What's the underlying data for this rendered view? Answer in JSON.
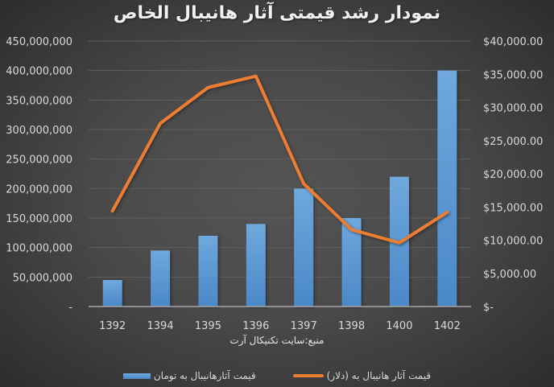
{
  "title": "نمودار رشد قیمتی آثار هانیبال الخاص",
  "xlabel": "منبع:سایت تکنیکال آرت",
  "colors": {
    "bar": "#5b9bd5",
    "bar_dark": "#4a88c8",
    "line": "#ed7d31",
    "grid": "#5f5f5f",
    "axis": "#a6a6a6",
    "text": "#d9d9d9"
  },
  "legend": {
    "line_label": "قیمت آثار هانیبال به (دلار)",
    "bar_label": "قیمت آثارهانیبال  به تومان"
  },
  "chart_data": {
    "type": "bar+line",
    "title": "نمودار رشد قیمتی آثار هانیبال الخاص",
    "xlabel": "منبع:سایت تکنیکال آرت",
    "ylabel": "",
    "categories": [
      "1392",
      "1394",
      "1395",
      "1396",
      "1397",
      "1398",
      "1400",
      "1402"
    ],
    "series": [
      {
        "name": "قیمت آثارهانیبال  به تومان",
        "type": "bar",
        "axis": "left",
        "values": [
          45000000,
          95000000,
          120000000,
          140000000,
          200000000,
          150000000,
          220000000,
          400000000
        ]
      },
      {
        "name": "قیمت آثار هانیبال به (دلار)",
        "type": "line",
        "axis": "right",
        "values": [
          14400,
          27600,
          33000,
          34700,
          18500,
          11600,
          9600,
          14200
        ]
      }
    ],
    "ylim_left": [
      0,
      450000000
    ],
    "ylim_right": [
      0,
      40000
    ],
    "yticks_left": [
      "-",
      "50,000,000",
      "100,000,000",
      "150,000,000",
      "200,000,000",
      "250,000,000",
      "300,000,000",
      "350,000,000",
      "400,000,000",
      "450,000,000"
    ],
    "yticks_right": [
      "$-",
      "$5,000.00",
      "$10,000.00",
      "$15,000.00",
      "$20,000.00",
      "$25,000.00",
      "$30,000.00",
      "$35,000.00",
      "$40,000.00"
    ],
    "grid": true,
    "legend_position": "bottom"
  }
}
